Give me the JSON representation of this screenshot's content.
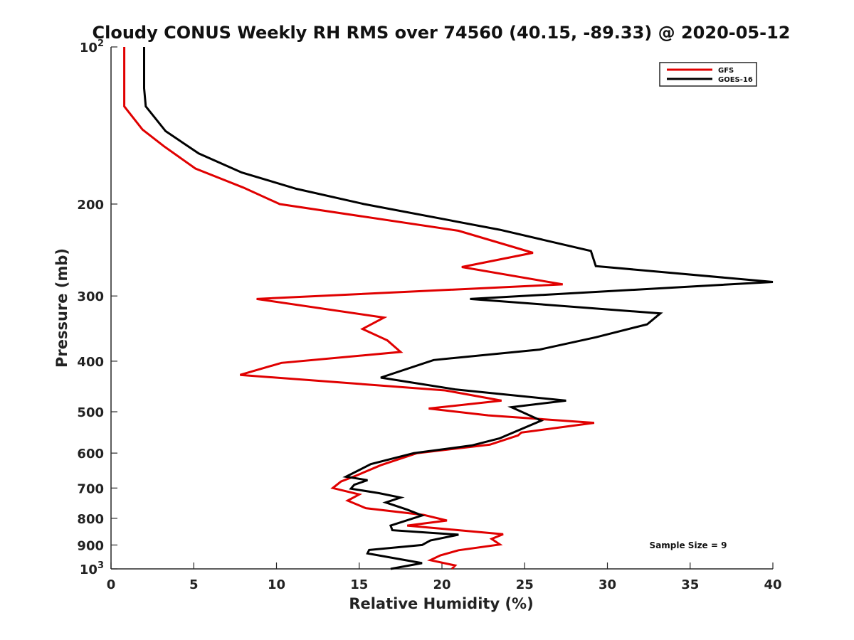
{
  "chart_data": {
    "type": "line",
    "title": "Cloudy CONUS Weekly RH RMS over 74560 (40.15, -89.33) @ 2020-05-12",
    "xlabel": "Relative Humidity (%)",
    "ylabel": "Pressure (mb)",
    "xlim": [
      0,
      40
    ],
    "ylim": [
      100,
      1000
    ],
    "y_scale": "log",
    "y_reversed": true,
    "grid": false,
    "legend_position": "top-right",
    "x_ticks": [
      "0",
      "5",
      "10",
      "15",
      "20",
      "25",
      "30",
      "35",
      "40"
    ],
    "y_ticks": [
      {
        "value": 100,
        "base": "10",
        "exp": "2"
      },
      {
        "value": 200,
        "label": "200"
      },
      {
        "value": 300,
        "label": "300"
      },
      {
        "value": 400,
        "label": "400"
      },
      {
        "value": 500,
        "label": "500"
      },
      {
        "value": 600,
        "label": "600"
      },
      {
        "value": 700,
        "label": "700"
      },
      {
        "value": 800,
        "label": "800"
      },
      {
        "value": 900,
        "label": "900"
      },
      {
        "value": 1000,
        "base": "10",
        "exp": "3"
      }
    ],
    "annotation": "Sample Size = 9",
    "series": [
      {
        "name": "GFS",
        "color": "#e00000",
        "points": [
          [
            0.8,
            100
          ],
          [
            0.8,
            130
          ],
          [
            1.9,
            144
          ],
          [
            3.2,
            155
          ],
          [
            5.1,
            171
          ],
          [
            8.0,
            186
          ],
          [
            10.2,
            200
          ],
          [
            21.0,
            225
          ],
          [
            25.5,
            248
          ],
          [
            21.2,
            264
          ],
          [
            27.3,
            285
          ],
          [
            8.8,
            304
          ],
          [
            16.5,
            330
          ],
          [
            15.2,
            347
          ],
          [
            16.7,
            365
          ],
          [
            17.5,
            384
          ],
          [
            10.3,
            403
          ],
          [
            7.8,
            425
          ],
          [
            20.2,
            455
          ],
          [
            23.6,
            476
          ],
          [
            19.2,
            493
          ],
          [
            22.8,
            508
          ],
          [
            29.2,
            525
          ],
          [
            24.8,
            548
          ],
          [
            24.6,
            555
          ],
          [
            22.9,
            578
          ],
          [
            18.5,
            600
          ],
          [
            16.3,
            633
          ],
          [
            14.8,
            663
          ],
          [
            13.9,
            680
          ],
          [
            13.4,
            700
          ],
          [
            15.0,
            720
          ],
          [
            14.3,
            740
          ],
          [
            15.4,
            765
          ],
          [
            18.9,
            788
          ],
          [
            20.3,
            808
          ],
          [
            17.9,
            826
          ],
          [
            23.7,
            858
          ],
          [
            23.0,
            876
          ],
          [
            23.5,
            898
          ],
          [
            21.0,
            921
          ],
          [
            19.9,
            942
          ],
          [
            19.3,
            962
          ],
          [
            20.8,
            985
          ],
          [
            20.6,
            1000
          ]
        ]
      },
      {
        "name": "GOES-16",
        "color": "#000000",
        "points": [
          [
            2.0,
            100
          ],
          [
            2.0,
            120
          ],
          [
            2.1,
            130
          ],
          [
            3.3,
            145
          ],
          [
            5.3,
            160
          ],
          [
            7.9,
            174
          ],
          [
            11.2,
            187
          ],
          [
            15.3,
            200
          ],
          [
            23.5,
            224
          ],
          [
            29.0,
            246
          ],
          [
            29.3,
            263
          ],
          [
            40.0,
            282
          ],
          [
            21.7,
            304
          ],
          [
            33.2,
            324
          ],
          [
            32.4,
            340
          ],
          [
            29.3,
            360
          ],
          [
            25.9,
            380
          ],
          [
            19.5,
            398
          ],
          [
            16.3,
            430
          ],
          [
            20.8,
            453
          ],
          [
            27.5,
            476
          ],
          [
            24.2,
            490
          ],
          [
            26.0,
            520
          ],
          [
            23.9,
            555
          ],
          [
            23.5,
            562
          ],
          [
            21.8,
            580
          ],
          [
            18.3,
            600
          ],
          [
            15.7,
            630
          ],
          [
            14.2,
            666
          ],
          [
            15.5,
            676
          ],
          [
            14.7,
            690
          ],
          [
            14.5,
            702
          ],
          [
            16.2,
            716
          ],
          [
            17.5,
            730
          ],
          [
            16.6,
            746
          ],
          [
            17.9,
            770
          ],
          [
            18.8,
            790
          ],
          [
            16.9,
            826
          ],
          [
            17.0,
            843
          ],
          [
            21.0,
            860
          ],
          [
            19.3,
            882
          ],
          [
            18.8,
            900
          ],
          [
            15.6,
            920
          ],
          [
            15.5,
            934
          ],
          [
            18.8,
            975
          ],
          [
            16.9,
            1000
          ]
        ]
      }
    ]
  }
}
